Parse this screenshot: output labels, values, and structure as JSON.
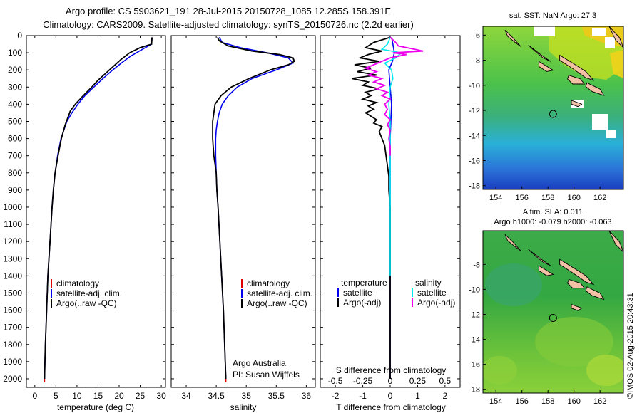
{
  "header": {
    "line1": "Argo profile: CS 5903621_191 28-Jul-2015 20150728_1085 12.285S 158.391E",
    "line2": "Climatology: CARS2009. Satellite-adjusted climatology: synTS_20150726.nc (2.2d earlier)"
  },
  "colors": {
    "climatology": "#e00000",
    "satellite": "#0000ee",
    "argo": "#000000",
    "salinity_sat": "#00e8f0",
    "salinity_argo": "#ee00ee"
  },
  "depth_axis": {
    "ylim": [
      0,
      2050
    ],
    "ticks": [
      0,
      100,
      200,
      300,
      400,
      500,
      600,
      700,
      800,
      900,
      1000,
      1100,
      1200,
      1300,
      1400,
      1500,
      1600,
      1700,
      1800,
      1900,
      2000
    ]
  },
  "panels": {
    "temperature": {
      "xlabel": "temperature (deg C)",
      "xlim": [
        -2,
        31
      ],
      "xticks": [
        0,
        5,
        10,
        15,
        20,
        25,
        30
      ],
      "legend": {
        "items": [
          {
            "label": "climatology",
            "color": "#e00000"
          },
          {
            "label": "satellite-adj. clim.",
            "color": "#0000ee"
          },
          {
            "label": "Argo(..raw -QC)",
            "color": "#000000"
          }
        ]
      }
    },
    "salinity": {
      "xlabel": "salinity",
      "xlim": [
        33.75,
        36.15
      ],
      "xticks": [
        34,
        34.5,
        35,
        35.5,
        36
      ],
      "legend": {
        "items": [
          {
            "label": "climatology",
            "color": "#e00000"
          },
          {
            "label": "satellite-adj. clim.",
            "color": "#0000ee"
          },
          {
            "label": "Argo(..raw -QC)",
            "color": "#000000"
          }
        ]
      },
      "annotation_line1": "Argo Australia",
      "annotation_line2": "PI: Susan Wijffels"
    },
    "difference": {
      "xlabel": "T difference from climatology",
      "xlim": [
        -2.55,
        2.55
      ],
      "xticks": [
        -2,
        -1,
        0,
        1,
        2
      ],
      "s_label": "S difference from climatology",
      "s_ticks": [
        "-0.5",
        "-0.25",
        "0",
        "0.25",
        "0.5"
      ],
      "s_tick_positions": [
        -2,
        -1,
        0,
        1,
        2
      ],
      "legend_t": {
        "header": "temperature",
        "items": [
          {
            "label": "satellite",
            "color": "#0000ee"
          },
          {
            "label": "Argo(-adj)",
            "color": "#000000"
          }
        ]
      },
      "legend_s": {
        "header": "salinity",
        "items": [
          {
            "label": "satellite",
            "color": "#00e8f0"
          },
          {
            "label": "Argo(-adj)",
            "color": "#ee00ee"
          }
        ]
      }
    }
  },
  "chart_data": [
    {
      "type": "line",
      "name": "temperature",
      "ylabel": "depth",
      "xlabel": "temperature (deg C)",
      "series": [
        {
          "name": "climatology",
          "color": "#e00000",
          "depth": [
            1980,
            2020
          ],
          "values": [
            2.3,
            2.3
          ]
        },
        {
          "name": "satellite-adj. clim.",
          "color": "#0000ee",
          "depth": [
            10,
            50,
            80,
            120,
            160,
            200,
            250,
            300,
            350,
            400,
            450,
            500,
            600,
            700,
            800,
            900,
            1000,
            1200,
            1400,
            1600,
            1800,
            2000
          ],
          "values": [
            27.8,
            27.7,
            25.5,
            22.7,
            20.5,
            18.5,
            16.2,
            14.0,
            11.9,
            10.2,
            8.8,
            7.6,
            6.2,
            5.4,
            4.8,
            4.4,
            4.1,
            3.6,
            3.1,
            2.8,
            2.5,
            2.3
          ]
        },
        {
          "name": "Argo(..raw -QC)",
          "color": "#000000",
          "depth": [
            10,
            50,
            70,
            100,
            140,
            180,
            220,
            260,
            300,
            350,
            400,
            440,
            480,
            520,
            600,
            700,
            800,
            900,
            1000,
            1200,
            1400,
            1600,
            1800,
            2000
          ],
          "values": [
            27.8,
            27.7,
            25.0,
            22.5,
            20.4,
            18.6,
            16.8,
            15.0,
            13.5,
            11.5,
            9.6,
            8.4,
            7.8,
            7.2,
            6.3,
            5.5,
            4.8,
            4.4,
            4.1,
            3.6,
            3.1,
            2.8,
            2.5,
            2.3
          ]
        }
      ]
    },
    {
      "type": "line",
      "name": "salinity",
      "ylabel": "depth",
      "xlabel": "salinity",
      "series": [
        {
          "name": "climatology",
          "color": "#e00000",
          "depth": [
            1980,
            2020
          ],
          "values": [
            34.66,
            34.66
          ]
        },
        {
          "name": "satellite-adj. clim.",
          "color": "#0000ee",
          "depth": [
            10,
            40,
            70,
            100,
            130,
            160,
            200,
            250,
            300,
            350,
            400,
            450,
            500,
            550,
            600,
            700,
            800,
            900,
            1000,
            1200,
            1400,
            1600,
            1800,
            2000
          ],
          "values": [
            34.55,
            34.6,
            34.9,
            35.35,
            35.7,
            35.78,
            35.5,
            35.1,
            34.85,
            34.7,
            34.6,
            34.55,
            34.52,
            34.5,
            34.49,
            34.49,
            34.5,
            34.51,
            34.53,
            34.56,
            34.59,
            34.62,
            34.64,
            34.66
          ]
        },
        {
          "name": "Argo(..raw -QC)",
          "color": "#000000",
          "depth": [
            10,
            30,
            60,
            90,
            110,
            130,
            150,
            170,
            200,
            250,
            300,
            350,
            400,
            450,
            500,
            550,
            600,
            650,
            700,
            800,
            900,
            1000,
            1200,
            1400,
            1600,
            1800,
            2000
          ],
          "values": [
            34.52,
            34.55,
            34.7,
            35.1,
            35.55,
            35.78,
            35.8,
            35.7,
            35.4,
            35.05,
            34.75,
            34.58,
            34.48,
            34.46,
            34.44,
            34.44,
            34.44,
            34.45,
            34.46,
            34.5,
            34.51,
            34.53,
            34.56,
            34.59,
            34.62,
            34.64,
            34.66
          ]
        }
      ]
    },
    {
      "type": "line",
      "name": "difference",
      "ylabel": "depth",
      "xlabel": "T difference from climatology",
      "series": [
        {
          "name": "temperature satellite",
          "color": "#0000ee",
          "depth": [
            10,
            50,
            100,
            150,
            200,
            300,
            400,
            600,
            800,
            1000,
            1400,
            2000
          ],
          "values": [
            0.05,
            0.1,
            0.15,
            0.08,
            -0.05,
            0.0,
            0.05,
            0.0,
            0.0,
            0.0,
            0.0,
            0.0
          ]
        },
        {
          "name": "temperature Argo(-adj)",
          "color": "#000000",
          "depth": [
            10,
            40,
            70,
            90,
            110,
            130,
            150,
            170,
            190,
            210,
            230,
            250,
            270,
            290,
            310,
            330,
            350,
            370,
            390,
            410,
            430,
            450,
            470,
            490,
            510,
            530,
            560,
            600,
            640,
            700,
            760,
            820,
            900,
            1000,
            1100,
            1300,
            1500,
            1700,
            1900,
            2000
          ],
          "values": [
            0.0,
            -0.6,
            -0.9,
            -0.3,
            -0.8,
            -1.1,
            -0.4,
            -1.3,
            -0.7,
            -1.2,
            -0.5,
            -1.4,
            -0.8,
            -1.0,
            -0.4,
            -0.9,
            -0.7,
            -1.0,
            -0.5,
            -0.8,
            -0.6,
            -0.9,
            -0.7,
            -0.5,
            -0.6,
            -0.3,
            -0.4,
            -0.3,
            -0.2,
            -0.15,
            -0.1,
            -0.05,
            -0.05,
            0.0,
            0.0,
            0.0,
            0.0,
            0.0,
            0.0,
            0.0
          ]
        },
        {
          "name": "salinity satellite",
          "color": "#00e8f0",
          "depth": [
            10,
            50,
            80,
            100,
            130,
            160,
            200,
            250,
            300,
            400,
            500,
            600,
            800,
            1000,
            1200,
            1400
          ],
          "values": [
            0.0,
            -0.1,
            -0.3,
            0.4,
            0.2,
            -0.2,
            0.05,
            0.1,
            0.0,
            -0.05,
            0.0,
            0.0,
            0.0,
            0.0,
            0.0,
            0.0
          ]
        },
        {
          "name": "salinity Argo(-adj)",
          "color": "#ee00ee",
          "depth": [
            10,
            40,
            60,
            80,
            90,
            100,
            110,
            130,
            150,
            170,
            190,
            210,
            230,
            250,
            270,
            290,
            310,
            330,
            350,
            370,
            400,
            430,
            460,
            490,
            520,
            550,
            600,
            650,
            700
          ],
          "values": [
            0.0,
            0.2,
            0.3,
            0.9,
            1.2,
            0.1,
            0.6,
            0.0,
            -0.3,
            -0.6,
            -0.9,
            -0.5,
            -0.8,
            -0.3,
            -0.6,
            -0.2,
            -0.5,
            -0.1,
            -0.3,
            0.0,
            -0.2,
            -0.1,
            -0.2,
            0.0,
            -0.1,
            0.0,
            -0.05,
            0.0,
            0.0
          ]
        }
      ]
    },
    {
      "type": "heatmap",
      "name": "sst-map",
      "title": "sat. SST: NaN Argo: 27.3",
      "xlim": [
        153,
        163.8
      ],
      "ylim": [
        -18.3,
        -5.3
      ],
      "xticks": [
        154,
        156,
        158,
        160,
        162
      ],
      "yticks": [
        -6,
        -8,
        -10,
        -12,
        -14,
        -16,
        -18
      ],
      "marker": {
        "lon": 158.391,
        "lat": -12.285
      }
    },
    {
      "type": "heatmap",
      "name": "sla-map",
      "title_line1": "Altim. SLA: 0.011",
      "title_line2": "Argo h1000: -0.079 h2000: -0.063",
      "xlim": [
        153,
        163.8
      ],
      "ylim": [
        -18.3,
        -5.3
      ],
      "xticks": [
        154,
        156,
        158,
        160,
        162
      ],
      "yticks": [
        -8,
        -10,
        -12,
        -14,
        -16,
        -18
      ],
      "marker": {
        "lon": 158.391,
        "lat": -12.285
      }
    }
  ],
  "credit": "©IMOS 02-Aug-2015 20:43:31"
}
